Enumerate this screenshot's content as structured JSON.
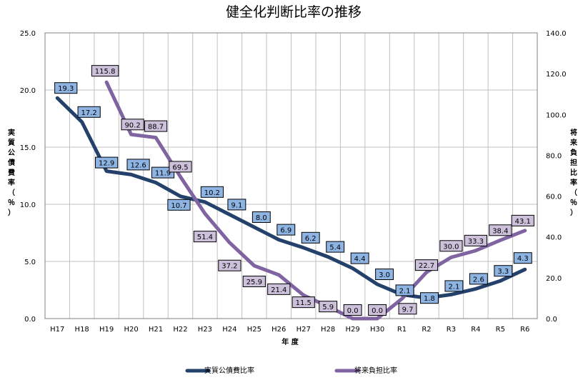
{
  "chart_data": {
    "type": "line",
    "title": "健全化判断比率の推移",
    "xlabel": "年 度",
    "ylabel_left": "実質公債費率（％）",
    "ylabel_right": "将来負担比率（％）",
    "categories": [
      "H17",
      "H18",
      "H19",
      "H20",
      "H21",
      "H22",
      "H23",
      "H24",
      "H25",
      "H26",
      "H27",
      "H28",
      "H29",
      "H30",
      "R1",
      "R2",
      "R3",
      "R4",
      "R5",
      "R6"
    ],
    "y_left_ticks": [
      "0.0",
      "5.0",
      "10.0",
      "15.0",
      "20.0",
      "25.0"
    ],
    "y_right_ticks": [
      "0.0",
      "20.0",
      "40.0",
      "60.0",
      "80.0",
      "100.0",
      "120.0",
      "140.0"
    ],
    "ylim_left": [
      0,
      25
    ],
    "ylim_right": [
      0,
      140
    ],
    "grid": true,
    "legend_position": "bottom",
    "series": [
      {
        "name": "実質公債費比率",
        "axis": "left",
        "color": "#24416b",
        "label_fill": "#8db4e2",
        "values": [
          19.3,
          17.2,
          12.9,
          12.6,
          11.9,
          10.7,
          10.2,
          9.1,
          8.0,
          6.9,
          6.2,
          5.4,
          4.4,
          3.0,
          2.1,
          1.8,
          2.1,
          2.6,
          3.3,
          4.3
        ],
        "labels": [
          "19.3",
          "17.2",
          "12.9",
          "12.6",
          "11.9",
          "10.7",
          "10.2",
          "9.1",
          "8.0",
          "6.9",
          "6.2",
          "5.4",
          "4.4",
          "3.0",
          "2.1",
          "1.8",
          "2.1",
          "2.6",
          "3.3",
          "4.3"
        ]
      },
      {
        "name": "将来負担比率",
        "axis": "right",
        "color": "#8064a2",
        "label_fill": "#ccc0da",
        "values": [
          null,
          null,
          115.8,
          90.2,
          88.7,
          69.5,
          51.4,
          37.2,
          25.9,
          21.4,
          11.5,
          5.9,
          0.0,
          0.0,
          9.7,
          22.7,
          30.0,
          33.3,
          38.4,
          43.1
        ],
        "labels": [
          null,
          null,
          "115.8",
          "90.2",
          "88.7",
          "69.5",
          "51.4",
          "37.2",
          "25.9",
          "21.4",
          "11.5",
          "5.9",
          "0.0",
          "0.0",
          "9.7",
          "22.7",
          "30.0",
          "33.3",
          "38.4",
          "43.1"
        ]
      }
    ]
  }
}
